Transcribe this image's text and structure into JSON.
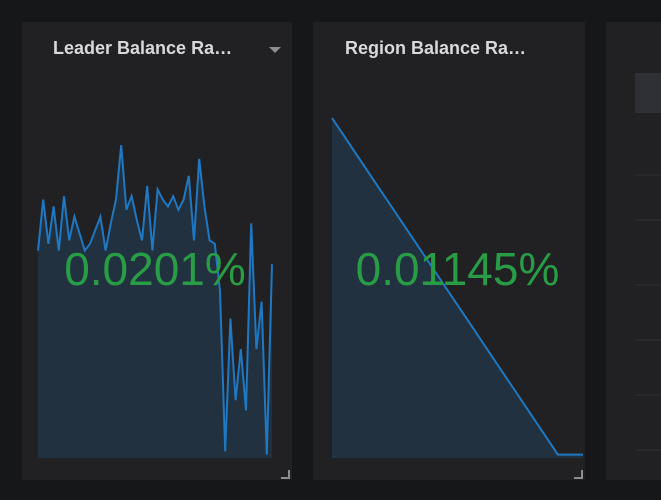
{
  "panels": [
    {
      "title": "Leader Balance Ra…",
      "value": "0.0201%",
      "sparkline": [
        61,
        76,
        63,
        74,
        61,
        77,
        64,
        71,
        66,
        61,
        63,
        67,
        71,
        61,
        69,
        76,
        92,
        73,
        77,
        70,
        64,
        80,
        61,
        79,
        76,
        74,
        77,
        73,
        76,
        83,
        64,
        88,
        74,
        64,
        63,
        49,
        2,
        41,
        17,
        32,
        14,
        69,
        32,
        46,
        1,
        57
      ]
    },
    {
      "title": "Region Balance Ra…",
      "value": "0.01145%",
      "sparkline": [
        100,
        94.5,
        89,
        83.5,
        78,
        72.5,
        67,
        61.5,
        56,
        50.5,
        45,
        39.5,
        34,
        28.5,
        23,
        17.5,
        12,
        6.5,
        1,
        1,
        1
      ]
    }
  ]
}
